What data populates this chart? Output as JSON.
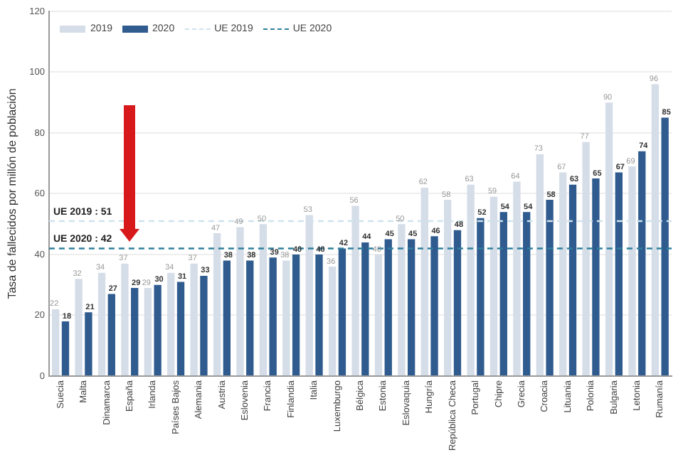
{
  "chart_data": {
    "type": "bar",
    "ylabel": "Tasa de fallecidos por millón de población",
    "categories": [
      "Suecia",
      "Malta",
      "Dinamarca",
      "España",
      "Irlanda",
      "Países Bajos",
      "Alemania",
      "Austria",
      "Eslovenia",
      "Francia",
      "Finlandia",
      "Italia",
      "Luxemburgo",
      "Bélgica",
      "Estonia",
      "Eslovaquia",
      "Hungría",
      "República Checa",
      "Portugal",
      "Chipre",
      "Grecia",
      "Croacia",
      "Lituania",
      "Polonia",
      "Bulgaria",
      "Letonia",
      "Rumanía"
    ],
    "series": [
      {
        "name": "2019",
        "color": "#d5dde8",
        "values": [
          22,
          32,
          34,
          37,
          29,
          34,
          37,
          47,
          49,
          50,
          38,
          53,
          36,
          56,
          40,
          50,
          62,
          58,
          63,
          59,
          64,
          73,
          67,
          77,
          90,
          69,
          96
        ]
      },
      {
        "name": "2020",
        "color": "#2f5b8f",
        "values": [
          18,
          21,
          27,
          29,
          30,
          31,
          33,
          38,
          38,
          39,
          40,
          40,
          42,
          44,
          45,
          45,
          46,
          48,
          52,
          54,
          54,
          58,
          63,
          65,
          67,
          74,
          85
        ]
      }
    ],
    "ref_lines": [
      {
        "axis": "y",
        "value": 51,
        "label": "UE 2019",
        "color": "#cfe2ec",
        "line_style": "dashed"
      },
      {
        "axis": "y",
        "value": 42,
        "label": "UE 2020",
        "color": "#2e7f9c",
        "line_style": "dashed"
      }
    ],
    "annotations": [
      "UE 2019 : 51",
      "UE 2020 : 42"
    ],
    "ylim": [
      0,
      120
    ],
    "yticks": [
      0,
      20,
      40,
      60,
      80,
      100,
      120
    ],
    "grid": "y",
    "legend": "top left",
    "data_labels": true
  }
}
